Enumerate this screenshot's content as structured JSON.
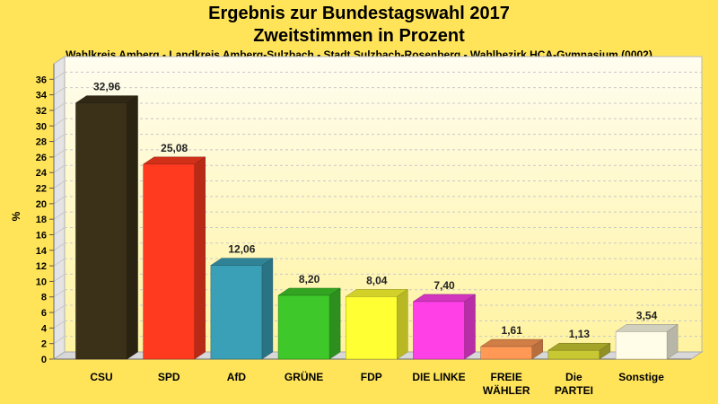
{
  "chart_data": {
    "type": "bar",
    "title": "Ergebnis zur Bundestagswahl 2017",
    "title2": "Zweitstimmen in Prozent",
    "subtitle": "Wahlkreis Amberg - Landkreis Amberg-Sulzbach - Stadt Sulzbach-Rosenberg - Wahlbezirk HCA-Gymnasium (0002)",
    "ylabel": "%",
    "ylim": [
      0,
      38
    ],
    "yticks": [
      0,
      2,
      4,
      6,
      8,
      10,
      12,
      14,
      16,
      18,
      20,
      22,
      24,
      26,
      28,
      30,
      32,
      34,
      36
    ],
    "grid": true,
    "categories": [
      [
        "CSU"
      ],
      [
        "SPD"
      ],
      [
        "AfD"
      ],
      [
        "GRÜNE"
      ],
      [
        "FDP"
      ],
      [
        "DIE LINKE"
      ],
      [
        "FREIE",
        "WÄHLER"
      ],
      [
        "Die",
        "PARTEI"
      ],
      [
        "Sonstige"
      ]
    ],
    "values": [
      32.96,
      25.08,
      12.06,
      8.2,
      8.04,
      7.4,
      1.61,
      1.13,
      3.54
    ],
    "value_labels": [
      "32,96",
      "25,08",
      "12,06",
      "8,20",
      "8,04",
      "7,40",
      "1,61",
      "1,13",
      "3,54"
    ],
    "colors": [
      "#3b3119",
      "#ff3a1f",
      "#3aa0b8",
      "#3ec82a",
      "#ffff33",
      "#ff40e6",
      "#ff9955",
      "#c8c832",
      "#fffde8"
    ]
  }
}
